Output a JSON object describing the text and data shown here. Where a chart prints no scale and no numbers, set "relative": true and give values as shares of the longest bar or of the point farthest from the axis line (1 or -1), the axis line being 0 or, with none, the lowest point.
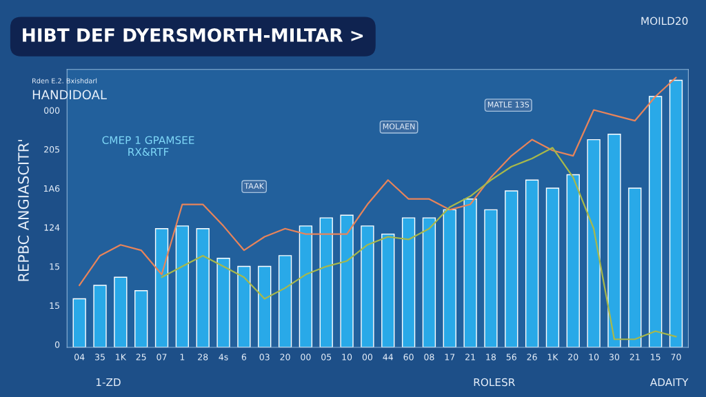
{
  "chart_data": {
    "type": "bar",
    "relative": true,
    "title": "HIBT DEF DYERSMORTH-MILTAR >",
    "subtitle": "HANDIDOAL",
    "ylabel": "REPBC ANGIASCITR'",
    "categories": [
      "04",
      "35",
      "1K",
      "25",
      "07",
      "1",
      "28",
      "4s",
      "6",
      "03",
      "20",
      "00",
      "05",
      "10",
      "00",
      "44",
      "60",
      "08",
      "17",
      "21",
      "18",
      "56",
      "26",
      "1K",
      "20",
      "10",
      "30",
      "21",
      "15",
      "70"
    ],
    "series": [
      {
        "color": "#29a9e8",
        "values": [
          0.18,
          0.23,
          0.26,
          0.21,
          0.44,
          0.45,
          0.44,
          0.33,
          0.3,
          0.3,
          0.34,
          0.45,
          0.48,
          0.49,
          0.45,
          0.42,
          0.48,
          0.48,
          0.51,
          0.55,
          0.51,
          0.58,
          0.62,
          0.59,
          0.64,
          0.77,
          0.79,
          0.59,
          0.93,
          0.99
        ]
      },
      {
        "type": "line",
        "color": "#e8845a",
        "values": [
          0.23,
          0.34,
          0.38,
          0.36,
          0.27,
          0.53,
          0.53,
          0.45,
          0.36,
          0.41,
          0.44,
          0.42,
          0.42,
          0.42,
          0.53,
          0.62,
          0.55,
          0.55,
          0.51,
          0.53,
          0.63,
          0.71,
          0.77,
          0.73,
          0.71,
          0.88,
          0.86,
          0.84,
          0.93,
          1
        ]
      },
      {
        "type": "line",
        "color": "#a8b84a",
        "values": [
          null,
          null,
          null,
          null,
          0.26,
          0.3,
          0.34,
          0.3,
          0.26,
          0.18,
          0.22,
          0.27,
          0.3,
          0.32,
          0.38,
          0.41,
          0.4,
          0.44,
          0.52,
          0.56,
          0.62,
          0.67,
          0.7,
          0.74,
          0.63,
          0.44,
          0.03,
          0.03,
          0.06,
          0.04
        ]
      }
    ],
    "annotations": [
      "MOILD20",
      "Rden E.2. Bxishdarl",
      "CMEP 1 GPAMSEE\nRX&RTF",
      "TAAK",
      "MOLAEN",
      "MATLE 13S",
      "1-ZD",
      "ROLESR",
      "ADAITY",
      "000",
      "205",
      "1A6",
      "124",
      "15",
      "15",
      "0"
    ]
  }
}
